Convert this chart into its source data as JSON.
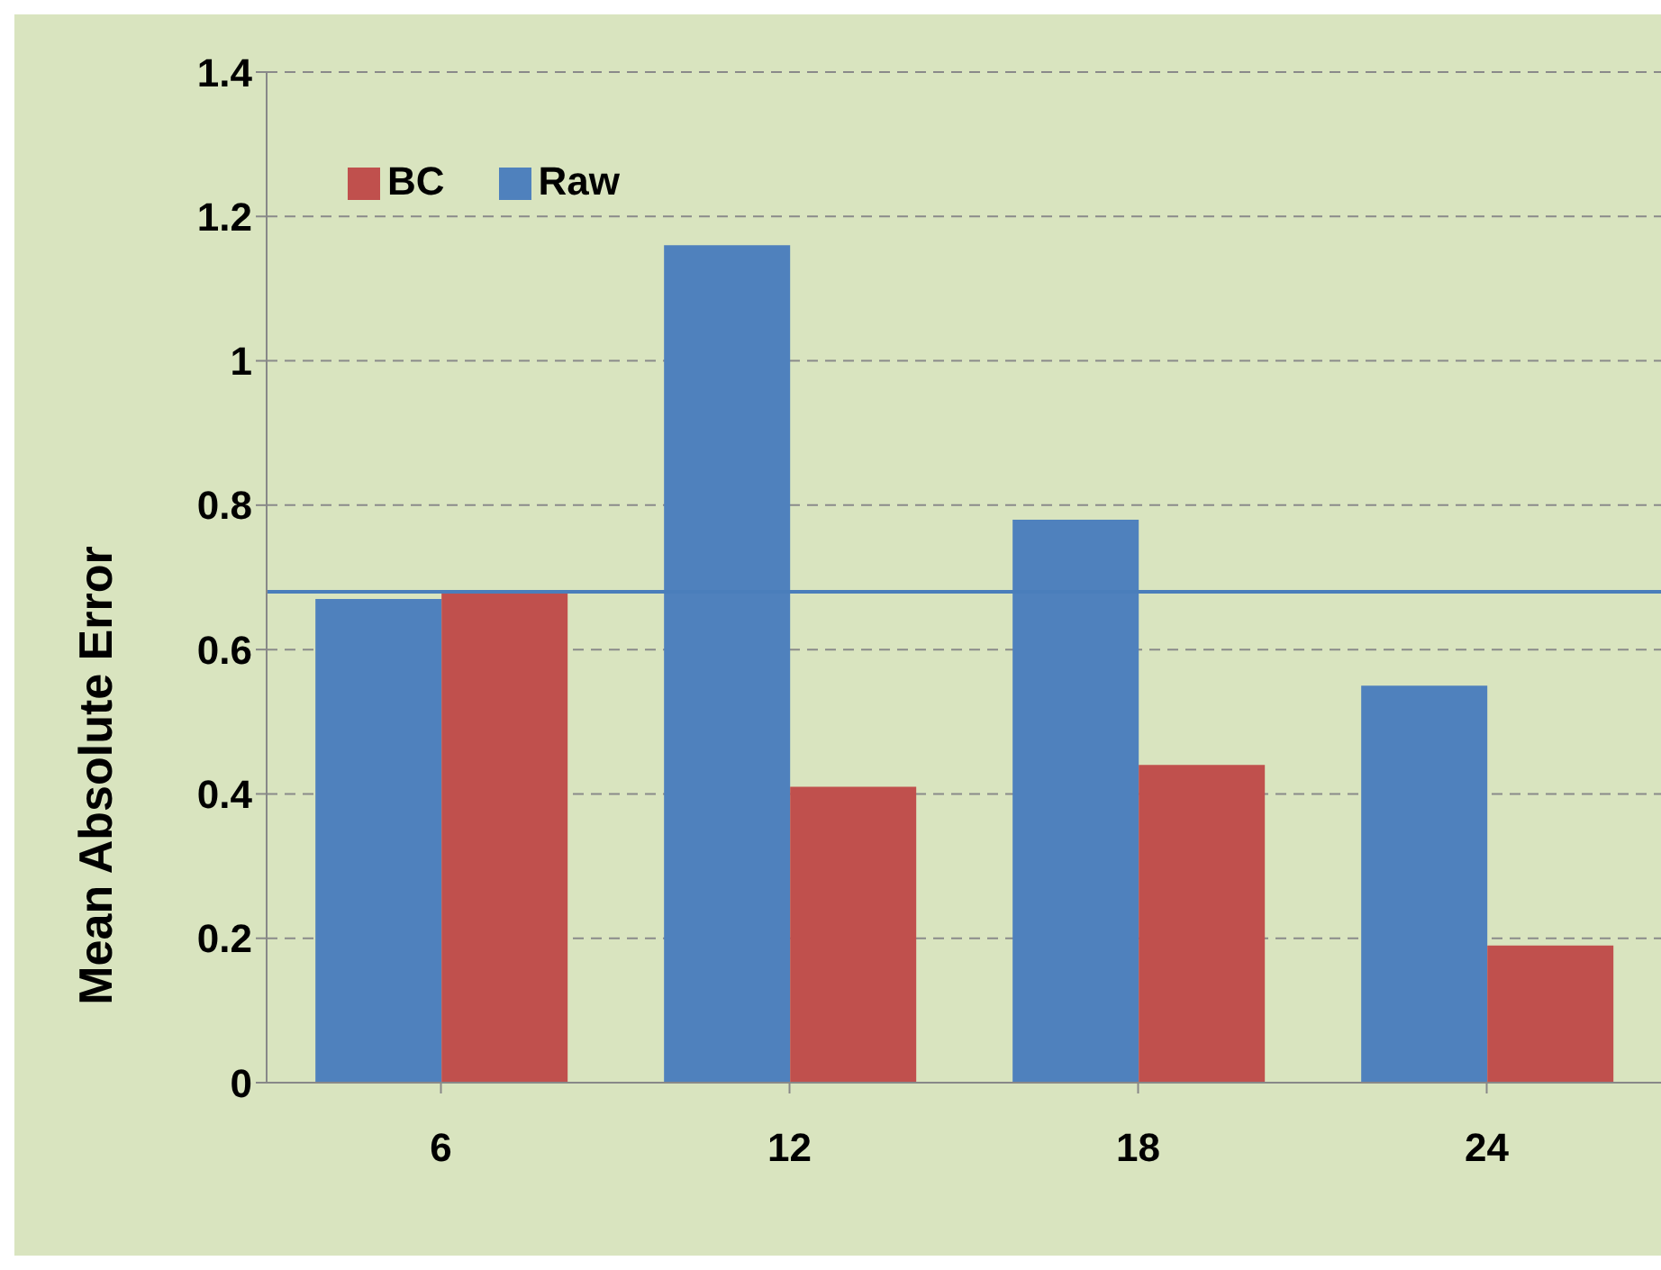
{
  "chart_data": {
    "type": "bar",
    "ylabel": "Mean Absolute Error",
    "categories": [
      "6",
      "12",
      "18",
      "24"
    ],
    "series": [
      {
        "name": "Raw",
        "color": "#4f81bd",
        "values": [
          0.67,
          1.16,
          0.78,
          0.55
        ]
      },
      {
        "name": "BC",
        "color": "#c0504d",
        "values": [
          0.68,
          0.41,
          0.44,
          0.19
        ]
      }
    ],
    "ylim": [
      0,
      1.4
    ],
    "yticks": [
      0,
      0.2,
      0.4,
      0.6,
      0.8,
      1,
      1.2,
      1.4
    ],
    "grid": "y",
    "legend": "top left",
    "ref_lines": [
      {
        "axis": "y",
        "value": 0.68,
        "color": "#4a7ebb"
      }
    ]
  }
}
